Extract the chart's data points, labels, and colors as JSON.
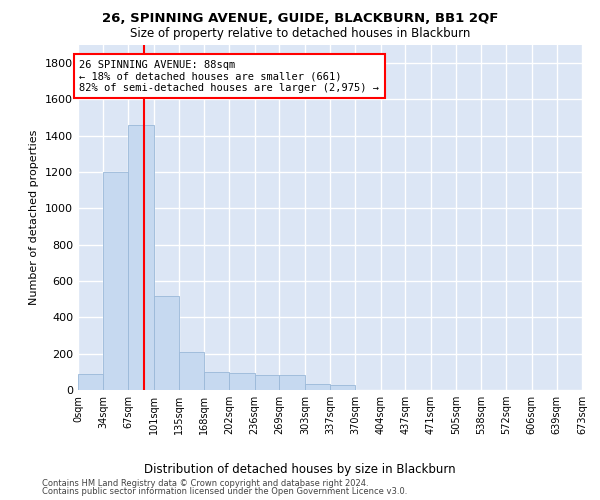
{
  "title": "26, SPINNING AVENUE, GUIDE, BLACKBURN, BB1 2QF",
  "subtitle": "Size of property relative to detached houses in Blackburn",
  "xlabel": "Distribution of detached houses by size in Blackburn",
  "ylabel": "Number of detached properties",
  "bar_color": "#c6d9f0",
  "bar_edge_color": "#9ab8d8",
  "background_color": "#dce6f5",
  "grid_color": "white",
  "annotation_line_color": "red",
  "annotation_box_color": "red",
  "annotation_text": "26 SPINNING AVENUE: 88sqm\n← 18% of detached houses are smaller (661)\n82% of semi-detached houses are larger (2,975) →",
  "property_size_sqm": 88,
  "bin_edges": [
    0,
    34,
    67,
    101,
    135,
    168,
    202,
    236,
    269,
    303,
    337,
    370,
    404,
    437,
    471,
    505,
    538,
    572,
    606,
    639,
    673
  ],
  "bin_labels": [
    "0sqm",
    "34sqm",
    "67sqm",
    "101sqm",
    "135sqm",
    "168sqm",
    "202sqm",
    "236sqm",
    "269sqm",
    "303sqm",
    "337sqm",
    "370sqm",
    "404sqm",
    "437sqm",
    "471sqm",
    "505sqm",
    "538sqm",
    "572sqm",
    "606sqm",
    "639sqm",
    "673sqm"
  ],
  "bar_heights": [
    90,
    1200,
    1460,
    520,
    210,
    100,
    95,
    80,
    80,
    35,
    30,
    0,
    0,
    0,
    0,
    0,
    0,
    0,
    0,
    0
  ],
  "ylim": [
    0,
    1900
  ],
  "yticks": [
    0,
    200,
    400,
    600,
    800,
    1000,
    1200,
    1400,
    1600,
    1800
  ],
  "footer_line1": "Contains HM Land Registry data © Crown copyright and database right 2024.",
  "footer_line2": "Contains public sector information licensed under the Open Government Licence v3.0."
}
